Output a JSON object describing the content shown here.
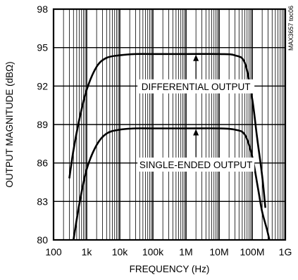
{
  "chart_data": {
    "type": "line",
    "xlabel": "FREQUENCY (Hz)",
    "ylabel": "OUTPUT MAGNITUDE (dBΩ)",
    "x_scale": "log",
    "xlim": [
      100,
      1000000000
    ],
    "ylim": [
      80,
      98
    ],
    "x_tick_values": [
      100,
      1000,
      10000,
      100000,
      1000000,
      10000000,
      100000000,
      1000000000
    ],
    "x_tick_labels": [
      "100",
      "1k",
      "10k",
      "100k",
      "1M",
      "10M",
      "100M",
      "1G"
    ],
    "y_tick_values": [
      80,
      83,
      86,
      89,
      92,
      95,
      98
    ],
    "y_tick_labels": [
      "80",
      "83",
      "86",
      "89",
      "92",
      "95",
      "98"
    ],
    "grid": true,
    "side_label": "MAX3657 toc06",
    "series": [
      {
        "name": "DIFFERENTIAL OUTPUT",
        "x": [
          300,
          400,
          600,
          1000,
          2000,
          4000,
          10000,
          30000,
          100000,
          1000000,
          10000000,
          30000000,
          60000000,
          100000000,
          140000000,
          200000000,
          250000000
        ],
        "y": [
          84.8,
          87.0,
          89.4,
          91.7,
          93.5,
          94.2,
          94.4,
          94.5,
          94.5,
          94.5,
          94.5,
          94.4,
          93.8,
          91.0,
          88.0,
          85.0,
          82.5
        ]
      },
      {
        "name": "SINGLE-ENDED OUTPUT",
        "x": [
          400,
          600,
          1000,
          2000,
          4000,
          10000,
          30000,
          100000,
          1000000,
          10000000,
          30000000,
          60000000,
          100000000,
          150000000,
          200000000,
          280000000,
          330000000
        ],
        "y": [
          80.0,
          82.8,
          85.5,
          87.4,
          88.3,
          88.6,
          88.7,
          88.7,
          88.7,
          88.7,
          88.6,
          88.2,
          86.5,
          84.0,
          82.2,
          80.8,
          80.0
        ]
      }
    ],
    "annotations": [
      {
        "text": "DIFFERENTIAL OUTPUT",
        "x": 2000000,
        "y": 91.7,
        "arrow_to": {
          "x": 2000000,
          "y": 94.5
        }
      },
      {
        "text": "SINGLE-ENDED OUTPUT",
        "x": 2000000,
        "y": 85.6,
        "arrow_to": {
          "x": 2000000,
          "y": 88.7
        }
      }
    ]
  }
}
